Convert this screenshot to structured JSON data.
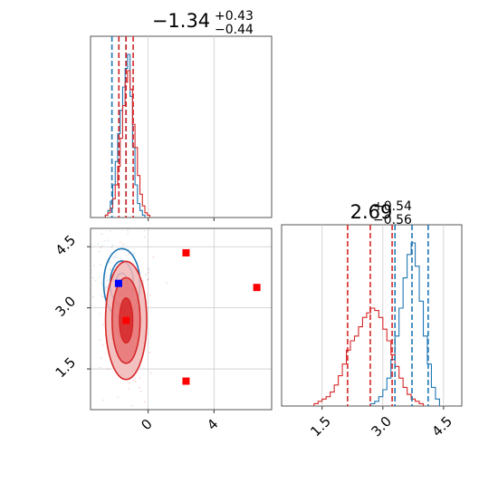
{
  "chart_data": {
    "type": "corner",
    "parameters": [
      "p1",
      "p2"
    ],
    "panels": [
      {
        "id": "marginal-p1",
        "type": "histogram",
        "title": {
          "main": "−1.34",
          "sup": "+0.43",
          "sub": "−0.44"
        },
        "xlim": [
          -3.5,
          7.5
        ],
        "x_ticks": [
          0,
          4
        ],
        "grid_x": [
          0,
          4
        ],
        "series": [
          {
            "color": "#1f77b4",
            "bin_edges": [
              -2.6,
              -2.45,
              -2.3,
              -2.15,
              -2.0,
              -1.85,
              -1.7,
              -1.55,
              -1.4,
              -1.25,
              -1.1,
              -0.95,
              -0.8,
              -0.65,
              -0.5,
              -0.35,
              -0.2
            ],
            "counts": [
              1,
              3,
              7,
              14,
              24,
              36,
              46,
              56,
              64,
              70,
              52,
              30,
              14,
              6,
              3,
              1
            ],
            "quantiles": [
              -2.2,
              -1.78,
              -1.35
            ]
          },
          {
            "color": "#d62728",
            "bin_edges": [
              -2.6,
              -2.45,
              -2.3,
              -2.15,
              -2.0,
              -1.85,
              -1.7,
              -1.55,
              -1.4,
              -1.25,
              -1.1,
              -0.95,
              -0.8,
              -0.65,
              -0.5,
              -0.35,
              -0.2,
              -0.05,
              0.1
            ],
            "counts": [
              1,
              2,
              4,
              8,
              14,
              22,
              34,
              48,
              58,
              63,
              55,
              40,
              30,
              18,
              10,
              5,
              2,
              1
            ],
            "quantiles": [
              -1.78,
              -1.34,
              -0.91
            ]
          }
        ]
      },
      {
        "id": "marginal-p2",
        "type": "histogram",
        "title": {
          "main": "2.69",
          "sup": "+0.54",
          "sub": "−0.56"
        },
        "xlim": [
          0.5,
          4.95
        ],
        "x_ticks": [
          1.5,
          3.0,
          4.5
        ],
        "x_tick_labels": [
          "1.5",
          "3.0",
          "4.5"
        ],
        "grid_x": [
          1.5,
          3.0,
          4.5
        ],
        "series": [
          {
            "color": "#1f77b4",
            "bin_edges": [
              2.7,
              2.8,
              2.9,
              3.0,
              3.1,
              3.2,
              3.3,
              3.4,
              3.5,
              3.6,
              3.7,
              3.8,
              3.9,
              4.0,
              4.1,
              4.2,
              4.3,
              4.4
            ],
            "counts": [
              1,
              2,
              4,
              7,
              12,
              20,
              30,
              42,
              55,
              65,
              70,
              60,
              45,
              30,
              18,
              8,
              3
            ],
            "quantiles": [
              3.3,
              3.72,
              4.12
            ]
          },
          {
            "color": "#d62728",
            "bin_edges": [
              1.3,
              1.4,
              1.5,
              1.6,
              1.7,
              1.8,
              1.9,
              2.0,
              2.1,
              2.2,
              2.3,
              2.4,
              2.5,
              2.6,
              2.7,
              2.8,
              2.9,
              3.0,
              3.1,
              3.2,
              3.3,
              3.4,
              3.5,
              3.6,
              3.7,
              3.8,
              3.9,
              4.0
            ],
            "counts": [
              1,
              2,
              3,
              4,
              6,
              9,
              13,
              18,
              24,
              28,
              30,
              34,
              38,
              40,
              42,
              41,
              38,
              33,
              28,
              22,
              17,
              12,
              8,
              5,
              3,
              2,
              1
            ],
            "quantiles": [
              2.13,
              2.69,
              3.23
            ]
          }
        ]
      },
      {
        "id": "joint-p1-p2",
        "type": "contour",
        "xlim": [
          -3.5,
          7.5
        ],
        "ylim": [
          0.5,
          4.95
        ],
        "x_ticks": [
          0,
          4
        ],
        "y_ticks": [
          1.5,
          3.0,
          4.5
        ],
        "y_tick_labels": [
          "1.5",
          "3.0",
          "4.5"
        ],
        "grid_x": [
          0,
          4
        ],
        "grid_y": [
          1.5,
          3.0,
          4.5
        ],
        "series": [
          {
            "color": "#1f77b4",
            "filled": false,
            "center": {
              "x": -1.6,
              "y": 3.6
            },
            "levels": [
              {
                "sx": 0.35,
                "sy": 0.25
              },
              {
                "sx": 0.7,
                "sy": 0.55
              },
              {
                "sx": 1.1,
                "sy": 0.85
              }
            ],
            "marker": {
              "x": -1.8,
              "y": 3.6,
              "color": "#0000ff"
            }
          },
          {
            "color": "#d62728",
            "filled": true,
            "center": {
              "x": -1.34,
              "y": 2.69
            },
            "levels": [
              {
                "sx": 0.4,
                "sy": 0.55
              },
              {
                "sx": 0.85,
                "sy": 1.05
              },
              {
                "sx": 1.25,
                "sy": 1.45
              }
            ],
            "marker": {
              "x": -1.34,
              "y": 2.69,
              "color": "#ff0000"
            }
          }
        ],
        "extra_points": [
          {
            "x": 2.3,
            "y": 4.35,
            "color": "#ff0000"
          },
          {
            "x": 6.6,
            "y": 3.5,
            "color": "#ff0000"
          },
          {
            "x": 2.3,
            "y": 1.2,
            "color": "#ff0000"
          }
        ]
      }
    ]
  }
}
